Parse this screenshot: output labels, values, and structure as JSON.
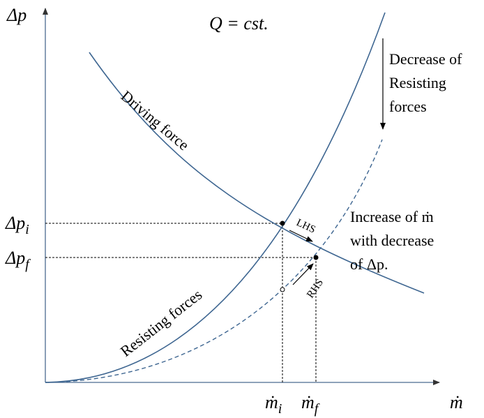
{
  "axes": {
    "y_label": "Δp",
    "x_label": "ṁ"
  },
  "title": "Q = cst.",
  "curves": {
    "driving": "Driving force",
    "resisting": "Resisting forces"
  },
  "annotations": {
    "decrease": [
      "Decrease of",
      "Resisting",
      "forces"
    ],
    "increase": [
      "Increase of ṁ",
      "with decrease",
      "of Δp."
    ]
  },
  "levels": {
    "dp_i": {
      "base": "Δp",
      "sub": "i"
    },
    "dp_f": {
      "base": "Δp",
      "sub": "f"
    },
    "m_i": {
      "base": "ṁ",
      "sub": "i"
    },
    "m_f": {
      "base": "ṁ",
      "sub": "f"
    }
  },
  "arrows": {
    "lhs": "LHS",
    "rhs": "RHS"
  }
}
